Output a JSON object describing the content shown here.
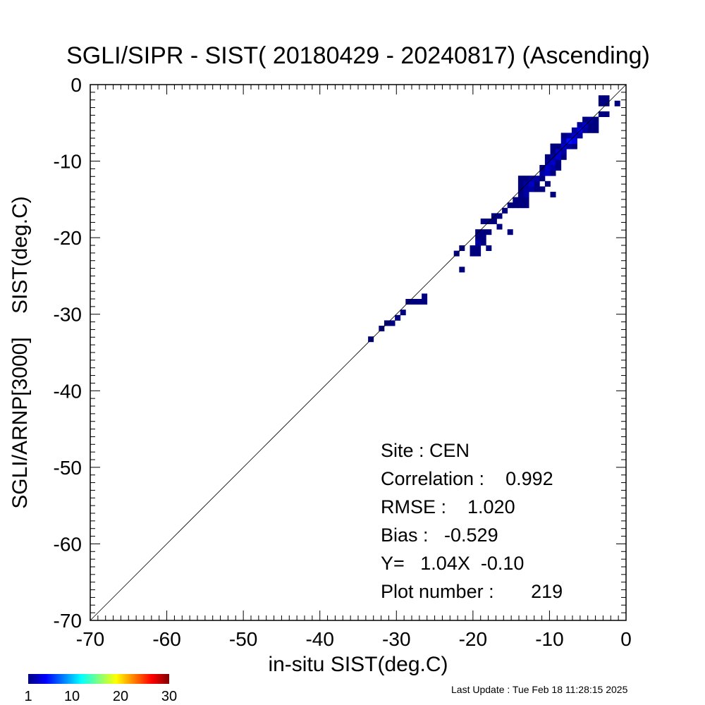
{
  "chart_data": {
    "type": "heatmap",
    "title": "SGLI/SIPR - SIST( 20180429 - 20240817) (Ascending)",
    "xlabel": "in-situ SIST(deg.C)",
    "ylabel": "SGLI/ARNP[3000]    SIST(deg.C)",
    "xlim": [
      -70,
      0
    ],
    "ylim": [
      -70,
      0
    ],
    "xticks": [
      "-70",
      "-60",
      "-50",
      "-40",
      "-30",
      "-20",
      "-10",
      "0"
    ],
    "yticks": [
      "-70",
      "-60",
      "-50",
      "-40",
      "-30",
      "-20",
      "-10",
      "0"
    ],
    "reference_line": "1:1",
    "grid": false,
    "bin_size": 0.7,
    "stats": {
      "site": "Site : CEN",
      "correlation": "Correlation :    0.992",
      "rmse": "RMSE :    1.020",
      "bias": "Bias :   -0.529",
      "fit": "Y=   1.04X  -0.10",
      "plot_number": "Plot number :       219"
    },
    "colorbar": {
      "min": 1,
      "max": 30,
      "tick_labels": [
        "1",
        "10",
        "20",
        "30"
      ],
      "colors": [
        "#00007f",
        "#0000ff",
        "#007fff",
        "#00ffff",
        "#7fff7f",
        "#ffff00",
        "#ff7f00",
        "#ff0000",
        "#7f0000"
      ]
    },
    "cells": [
      {
        "x": -33.7,
        "y": -33.6,
        "c": 1
      },
      {
        "x": -32.3,
        "y": -32.2,
        "c": 1
      },
      {
        "x": -31.6,
        "y": -31.5,
        "c": 1
      },
      {
        "x": -30.9,
        "y": -31.5,
        "c": 1
      },
      {
        "x": -30.2,
        "y": -30.8,
        "c": 1
      },
      {
        "x": -29.5,
        "y": -30.1,
        "c": 1
      },
      {
        "x": -28.8,
        "y": -28.7,
        "c": 1
      },
      {
        "x": -28.1,
        "y": -28.7,
        "c": 1
      },
      {
        "x": -27.4,
        "y": -28.7,
        "c": 1
      },
      {
        "x": -26.7,
        "y": -28.7,
        "c": 1
      },
      {
        "x": -26.7,
        "y": -28.0,
        "c": 1
      },
      {
        "x": -22.5,
        "y": -22.4,
        "c": 1
      },
      {
        "x": -21.8,
        "y": -21.7,
        "c": 1
      },
      {
        "x": -21.8,
        "y": -24.5,
        "c": 1
      },
      {
        "x": -20.4,
        "y": -22.4,
        "c": 1
      },
      {
        "x": -19.7,
        "y": -22.4,
        "c": 1
      },
      {
        "x": -20.4,
        "y": -21.7,
        "c": 1
      },
      {
        "x": -19.7,
        "y": -21.7,
        "c": 1
      },
      {
        "x": -19.7,
        "y": -21.0,
        "c": 2
      },
      {
        "x": -19.0,
        "y": -21.0,
        "c": 1
      },
      {
        "x": -19.7,
        "y": -20.3,
        "c": 1
      },
      {
        "x": -19.0,
        "y": -20.3,
        "c": 1
      },
      {
        "x": -19.7,
        "y": -19.6,
        "c": 1
      },
      {
        "x": -19.0,
        "y": -19.6,
        "c": 1
      },
      {
        "x": -18.3,
        "y": -21.7,
        "c": 1
      },
      {
        "x": -18.3,
        "y": -19.6,
        "c": 1
      },
      {
        "x": -19.0,
        "y": -18.2,
        "c": 1
      },
      {
        "x": -18.3,
        "y": -18.2,
        "c": 1
      },
      {
        "x": -17.6,
        "y": -18.2,
        "c": 1
      },
      {
        "x": -17.6,
        "y": -17.5,
        "c": 1
      },
      {
        "x": -16.9,
        "y": -17.5,
        "c": 1
      },
      {
        "x": -16.9,
        "y": -18.9,
        "c": 1
      },
      {
        "x": -15.5,
        "y": -19.6,
        "c": 1
      },
      {
        "x": -16.2,
        "y": -16.8,
        "c": 1
      },
      {
        "x": -15.5,
        "y": -16.1,
        "c": 1
      },
      {
        "x": -14.8,
        "y": -16.1,
        "c": 1
      },
      {
        "x": -14.1,
        "y": -16.1,
        "c": 1
      },
      {
        "x": -13.4,
        "y": -16.1,
        "c": 1
      },
      {
        "x": -14.8,
        "y": -15.4,
        "c": 1
      },
      {
        "x": -14.1,
        "y": -15.4,
        "c": 1
      },
      {
        "x": -13.4,
        "y": -15.4,
        "c": 1
      },
      {
        "x": -14.1,
        "y": -14.7,
        "c": 1
      },
      {
        "x": -13.4,
        "y": -14.7,
        "c": 2
      },
      {
        "x": -14.1,
        "y": -14.0,
        "c": 1
      },
      {
        "x": -13.4,
        "y": -14.0,
        "c": 2
      },
      {
        "x": -12.7,
        "y": -14.0,
        "c": 2
      },
      {
        "x": -14.1,
        "y": -13.3,
        "c": 1
      },
      {
        "x": -13.4,
        "y": -13.3,
        "c": 2
      },
      {
        "x": -12.7,
        "y": -13.3,
        "c": 3
      },
      {
        "x": -12.0,
        "y": -13.3,
        "c": 1
      },
      {
        "x": -14.1,
        "y": -12.6,
        "c": 1
      },
      {
        "x": -13.4,
        "y": -12.6,
        "c": 1
      },
      {
        "x": -12.7,
        "y": -12.6,
        "c": 2
      },
      {
        "x": -12.0,
        "y": -12.6,
        "c": 2
      },
      {
        "x": -12.0,
        "y": -14.0,
        "c": 1
      },
      {
        "x": -11.3,
        "y": -14.0,
        "c": 1
      },
      {
        "x": -11.3,
        "y": -12.6,
        "c": 1
      },
      {
        "x": -10.6,
        "y": -13.3,
        "c": 1
      },
      {
        "x": -9.9,
        "y": -14.7,
        "c": 1
      },
      {
        "x": -11.3,
        "y": -11.9,
        "c": 2
      },
      {
        "x": -10.6,
        "y": -11.9,
        "c": 3
      },
      {
        "x": -9.9,
        "y": -11.9,
        "c": 1
      },
      {
        "x": -11.3,
        "y": -11.2,
        "c": 1
      },
      {
        "x": -10.6,
        "y": -11.2,
        "c": 3
      },
      {
        "x": -9.9,
        "y": -11.2,
        "c": 2
      },
      {
        "x": -9.2,
        "y": -11.2,
        "c": 1
      },
      {
        "x": -10.6,
        "y": -10.5,
        "c": 2
      },
      {
        "x": -9.9,
        "y": -10.5,
        "c": 3
      },
      {
        "x": -9.2,
        "y": -10.5,
        "c": 1
      },
      {
        "x": -10.6,
        "y": -9.8,
        "c": 1
      },
      {
        "x": -9.9,
        "y": -9.8,
        "c": 2
      },
      {
        "x": -9.2,
        "y": -9.8,
        "c": 3
      },
      {
        "x": -8.5,
        "y": -9.8,
        "c": 1
      },
      {
        "x": -9.9,
        "y": -9.1,
        "c": 1
      },
      {
        "x": -9.2,
        "y": -9.1,
        "c": 3
      },
      {
        "x": -8.5,
        "y": -9.1,
        "c": 2
      },
      {
        "x": -9.9,
        "y": -8.4,
        "c": 1
      },
      {
        "x": -9.2,
        "y": -8.4,
        "c": 1
      },
      {
        "x": -8.5,
        "y": -8.4,
        "c": 3
      },
      {
        "x": -7.8,
        "y": -8.4,
        "c": 2
      },
      {
        "x": -7.1,
        "y": -8.4,
        "c": 1
      },
      {
        "x": -8.5,
        "y": -7.7,
        "c": 2
      },
      {
        "x": -7.8,
        "y": -7.7,
        "c": 5
      },
      {
        "x": -7.1,
        "y": -7.7,
        "c": 4
      },
      {
        "x": -8.5,
        "y": -7.0,
        "c": 1
      },
      {
        "x": -7.8,
        "y": -7.0,
        "c": 2
      },
      {
        "x": -7.1,
        "y": -7.0,
        "c": 3
      },
      {
        "x": -6.4,
        "y": -7.0,
        "c": 2
      },
      {
        "x": -7.1,
        "y": -6.3,
        "c": 2
      },
      {
        "x": -6.4,
        "y": -6.3,
        "c": 4
      },
      {
        "x": -5.7,
        "y": -6.3,
        "c": 2
      },
      {
        "x": -5.0,
        "y": -6.3,
        "c": 1
      },
      {
        "x": -4.3,
        "y": -6.3,
        "c": 1
      },
      {
        "x": -6.4,
        "y": -5.6,
        "c": 2
      },
      {
        "x": -5.7,
        "y": -5.6,
        "c": 3
      },
      {
        "x": -5.0,
        "y": -5.6,
        "c": 1
      },
      {
        "x": -4.3,
        "y": -5.6,
        "c": 1
      },
      {
        "x": -5.7,
        "y": -4.9,
        "c": 1
      },
      {
        "x": -5.0,
        "y": -4.9,
        "c": 2
      },
      {
        "x": -4.3,
        "y": -4.9,
        "c": 1
      },
      {
        "x": -3.6,
        "y": -4.2,
        "c": 1
      },
      {
        "x": -2.9,
        "y": -4.2,
        "c": 1
      },
      {
        "x": -3.6,
        "y": -2.8,
        "c": 1
      },
      {
        "x": -2.9,
        "y": -2.8,
        "c": 1
      },
      {
        "x": -3.6,
        "y": -2.1,
        "c": 1
      },
      {
        "x": -2.9,
        "y": -2.1,
        "c": 1
      },
      {
        "x": -1.5,
        "y": -2.8,
        "c": 1
      }
    ]
  },
  "footer": {
    "last_update": "Last Update : Tue Feb 18 11:28:15 2025"
  }
}
